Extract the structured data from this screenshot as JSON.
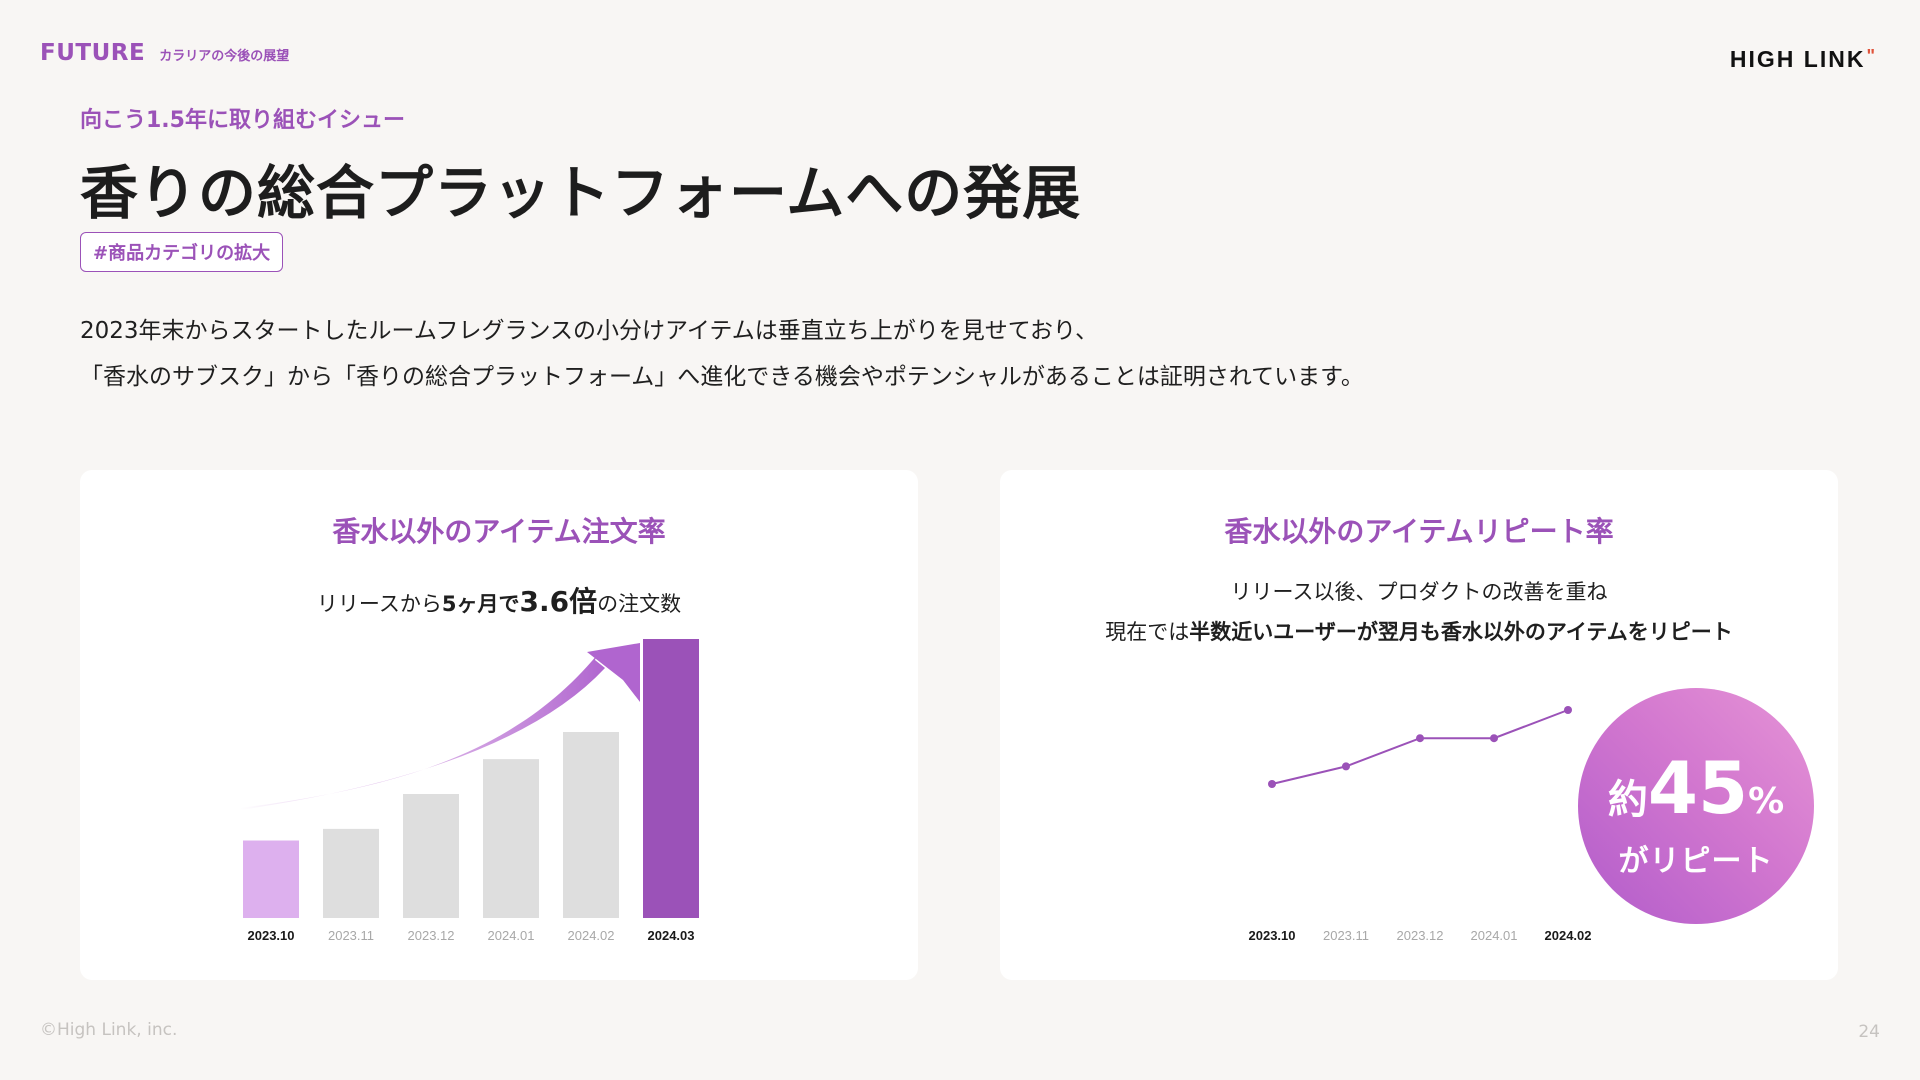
{
  "header": {
    "section": "FUTURE",
    "section_sub": "カラリアの今後の展望"
  },
  "logo": {
    "text": "HIGH LINK",
    "mark": "\""
  },
  "eyebrow": "向こう1.5年に取り組むイシュー",
  "title": "香りの総合プラットフォームへの発展",
  "tag": "#商品カテゴリの拡大",
  "description": {
    "line1": "2023年末からスタートしたルームフレグランスの小分けアイテムは垂直立ち上がりを見せており、",
    "line2": "「香水のサブスク」から「香りの総合プラットフォーム」へ進化できる機会やポテンシャルがあることは証明されています。"
  },
  "left_card": {
    "title": "香水以外のアイテム注文率",
    "sub_a": "リリースから",
    "sub_b": "5ヶ月で",
    "sub_c": "3.6倍",
    "sub_d": "の注文数"
  },
  "right_card": {
    "title": "香水以外のアイテムリピート率",
    "sub_line1": "リリース以後、プロダクトの改善を重ね",
    "sub_line2_a": "現在では",
    "sub_line2_b": "半数近いユーザーが翌月も香水以外のアイテムをリピート",
    "badge_pre": "約",
    "badge_num": "45",
    "badge_unit": "%",
    "badge_text": "がリピート"
  },
  "chart_data": [
    {
      "type": "bar",
      "title": "香水以外のアイテム注文率",
      "categories": [
        "2023.10",
        "2023.11",
        "2023.12",
        "2024.01",
        "2024.02",
        "2024.03"
      ],
      "values": [
        1.0,
        1.15,
        1.6,
        2.05,
        2.4,
        3.6
      ],
      "ylim": [
        0,
        3.6
      ],
      "highlight": {
        "first": "#ddb0ee",
        "last": "#9b52b8",
        "others": "#dedede"
      },
      "bold_categories": [
        "2023.10",
        "2024.03"
      ]
    },
    {
      "type": "line",
      "title": "香水以外のアイテムリピート率",
      "categories": [
        "2023.10",
        "2023.11",
        "2023.12",
        "2024.01",
        "2024.02"
      ],
      "values": [
        1.0,
        1.25,
        1.65,
        1.65,
        2.05
      ],
      "ylim": [
        0,
        2.05
      ],
      "color": "#9b52b8",
      "bold_categories": [
        "2023.10",
        "2024.02"
      ]
    }
  ],
  "footer": {
    "copyright": "©High Link, inc.",
    "page": "24"
  }
}
